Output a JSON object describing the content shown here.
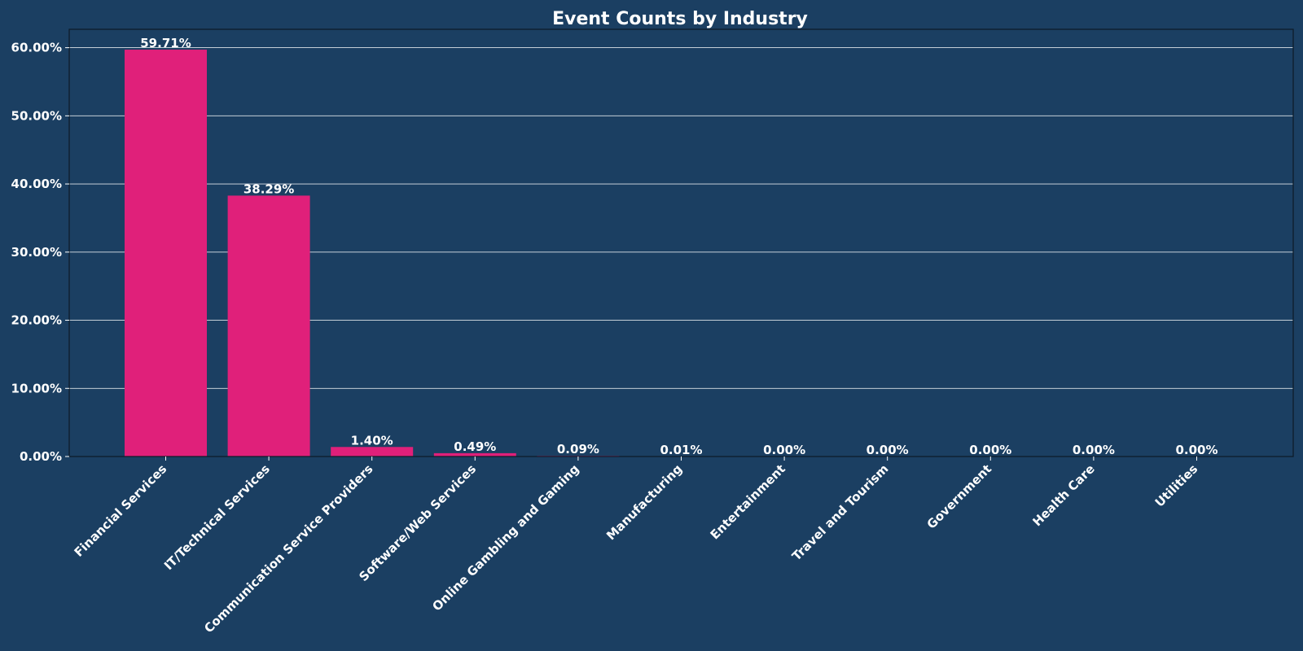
{
  "chart_data": {
    "type": "bar",
    "title": "Event Counts by Industry",
    "xlabel": "",
    "ylabel": "",
    "categories": [
      "Financial Services",
      "IT/Technical Services",
      "Communication Service Providers",
      "Software/Web Services",
      "Online Gambling and Gaming",
      "Manufacturing",
      "Entertainment",
      "Travel and Tourism",
      "Government",
      "Health Care",
      "Utilities"
    ],
    "values": [
      59.71,
      38.29,
      1.4,
      0.49,
      0.09,
      0.01,
      0.0,
      0.0,
      0.0,
      0.0,
      0.0
    ],
    "data_labels": [
      "59.71%",
      "38.29%",
      "1.40%",
      "0.49%",
      "0.09%",
      "0.01%",
      "0.00%",
      "0.00%",
      "0.00%",
      "0.00%",
      "0.00%"
    ],
    "yticks": [
      0,
      10,
      20,
      30,
      40,
      50,
      60
    ],
    "ytick_labels": [
      "0.00%",
      "10.00%",
      "20.00%",
      "30.00%",
      "40.00%",
      "50.00%",
      "60.00%"
    ],
    "ylim": [
      0,
      62.7
    ],
    "grid": "horizontal",
    "legend": "none",
    "colors": {
      "background": "#1b3f62",
      "bar": "#e0207a",
      "text": "#ffffff",
      "grid": "#ffffff",
      "axis": "#0d1a26"
    }
  }
}
